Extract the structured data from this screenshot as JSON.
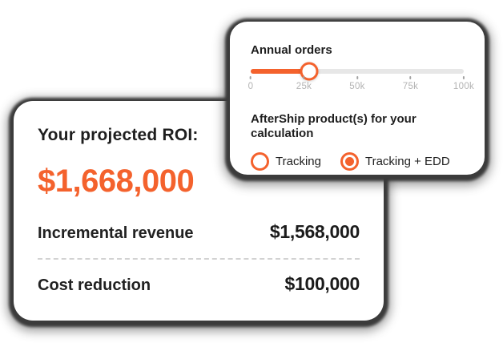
{
  "colors": {
    "accent_orange": "#F4622D",
    "text_dark": "#1F1F1F",
    "track_gray": "#E7E7E7",
    "tick_label_gray": "#B3B3B3",
    "card_shadow_dark": "#3B3B3B",
    "background": "#FFFFFF"
  },
  "calculator_card": {
    "annual_orders_label": "Annual orders",
    "slider": {
      "value_percent": 27.5,
      "ticks": [
        "0",
        "25k",
        "50k",
        "75k",
        "100k"
      ]
    },
    "product_question": "AfterShip product(s) for your calculation",
    "options": [
      {
        "label": "Tracking",
        "selected": false
      },
      {
        "label": "Tracking + EDD",
        "selected": true
      }
    ]
  },
  "roi_card": {
    "title": "Your projected ROI:",
    "total": "$1,668,000",
    "rows": [
      {
        "label": "Incremental revenue",
        "value": "$1,568,000"
      },
      {
        "label": "Cost reduction",
        "value": "$100,000"
      }
    ]
  }
}
